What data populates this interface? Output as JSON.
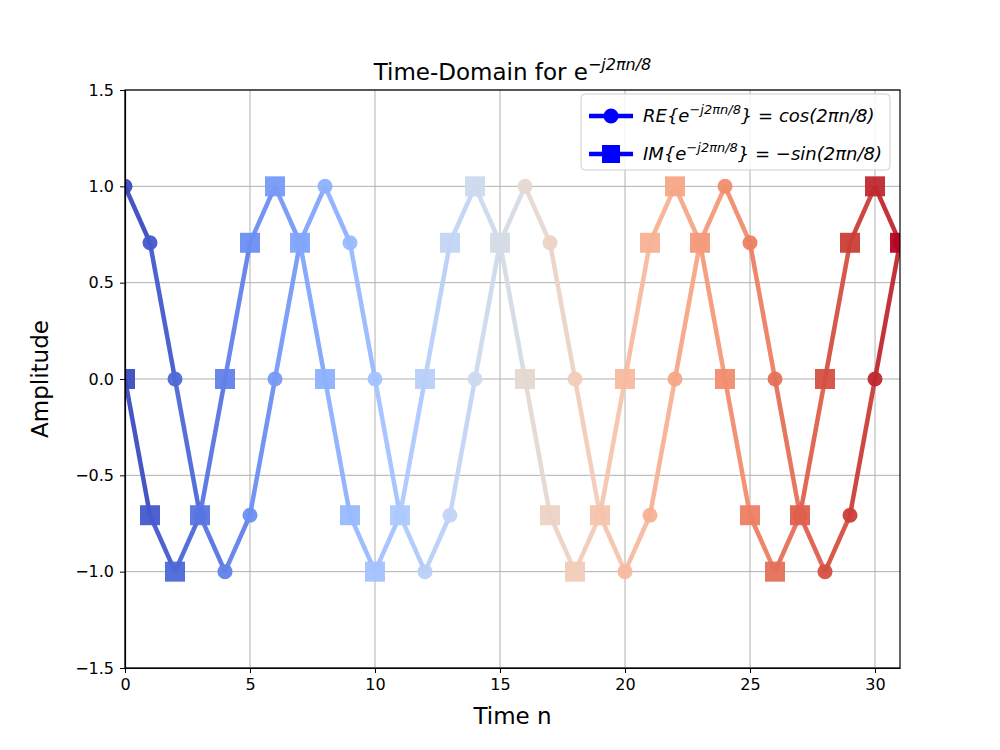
{
  "chart_data": {
    "type": "line",
    "title": "Time-Domain for e−j2πn/8",
    "x_label": "Time n",
    "y_label": "Amplitude",
    "x": [
      0,
      1,
      2,
      3,
      4,
      5,
      6,
      7,
      8,
      9,
      10,
      11,
      12,
      13,
      14,
      15,
      16,
      17,
      18,
      19,
      20,
      21,
      22,
      23,
      24,
      25,
      26,
      27,
      28,
      29,
      30,
      31
    ],
    "series": [
      {
        "name": "RE{e−j2πn/8} = cos(2πn/8)",
        "color": "#0000ff",
        "marker": "circle",
        "line_style": "solid",
        "colors": [
          "#3b4cc0",
          "#445acc",
          "#4d68d7",
          "#5775e1",
          "#6282ea",
          "#6c8ef1",
          "#779af7",
          "#82a5fb",
          "#8db0fe",
          "#98b9ff",
          "#a3c2ff",
          "#aec9fd",
          "#b8d0f9",
          "#c2d5f4",
          "#ccd9ee",
          "#d5dbe6",
          "#e5d8d1",
          "#ecd3c5",
          "#f1ccb9",
          "#f5c4ad",
          "#f7bba0",
          "#f7b194",
          "#f7a687",
          "#f49a7b",
          "#f18d6f",
          "#ec7f63",
          "#e57058",
          "#de604d",
          "#d55042",
          "#cb3e38",
          "#c0282f",
          "#b40426"
        ],
        "values": [
          1,
          0.707,
          0,
          -0.707,
          -1,
          -0.707,
          0,
          0.707,
          1,
          0.707,
          0,
          -0.707,
          -1,
          -0.707,
          0,
          0.707,
          1,
          0.707,
          0,
          -0.707,
          -1,
          -0.707,
          0,
          0.707,
          1,
          0.707,
          0,
          -0.707,
          -1,
          -0.707,
          0,
          0.707
        ]
      },
      {
        "name": "IM{e−j2πn/8} = −sin(2πn/8)",
        "color": "#0000ff",
        "marker": "square",
        "line_style": "solid",
        "colors": [
          "#3b4cc0",
          "#445acc",
          "#4d68d7",
          "#5775e1",
          "#6282ea",
          "#6c8ef1",
          "#779af7",
          "#82a5fb",
          "#8db0fe",
          "#98b9ff",
          "#a3c2ff",
          "#aec9fd",
          "#b8d0f9",
          "#c2d5f4",
          "#ccd9ee",
          "#d5dbe6",
          "#e5d8d1",
          "#ecd3c5",
          "#f1ccb9",
          "#f5c4ad",
          "#f7bba0",
          "#f7b194",
          "#f7a687",
          "#f49a7b",
          "#f18d6f",
          "#ec7f63",
          "#e57058",
          "#de604d",
          "#d55042",
          "#cb3e38",
          "#c0282f",
          "#b40426"
        ],
        "values": [
          0,
          -0.707,
          -1,
          -0.707,
          0,
          0.707,
          1,
          0.707,
          0,
          -0.707,
          -1,
          -0.707,
          0,
          0.707,
          1,
          0.707,
          0,
          -0.707,
          -1,
          -0.707,
          0,
          0.707,
          1,
          0.707,
          0,
          -0.707,
          -1,
          -0.707,
          0,
          0.707,
          1,
          0.707
        ]
      }
    ],
    "xlim": [
      0,
      31
    ],
    "xticks": [
      0,
      5,
      10,
      15,
      20,
      25,
      30
    ],
    "ylim": [
      -1.5,
      1.5
    ],
    "yticks": [
      {
        "value": -1.5,
        "label": "−1.5"
      },
      {
        "value": -1.0,
        "label": "−1.0"
      },
      {
        "value": -0.5,
        "label": "−0.5"
      },
      {
        "value": 0,
        "label": "0.0"
      },
      0.5,
      {
        "value": 1.0,
        "label": "1.0"
      },
      1.5
    ],
    "grid": true,
    "legend": "upper right"
  }
}
